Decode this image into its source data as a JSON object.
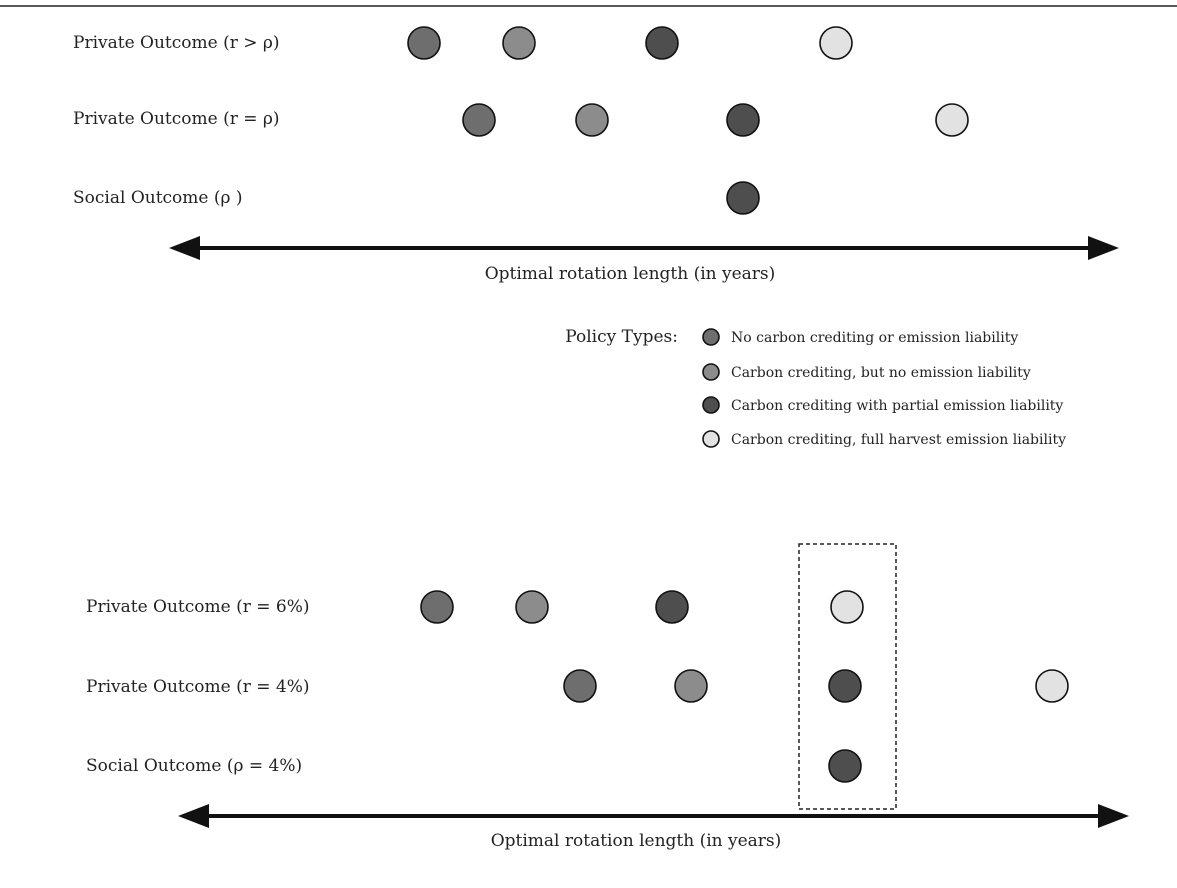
{
  "colors": {
    "none": "#6e6e6e",
    "crediting": "#8c8c8c",
    "partial": "#4e4e4e",
    "full": "#e2e2e2"
  },
  "legend": {
    "title": "Policy Types:",
    "items": [
      {
        "key": "none",
        "label": "No carbon crediting or emission liability"
      },
      {
        "key": "crediting",
        "label": "Carbon crediting, but no emission liability"
      },
      {
        "key": "partial",
        "label": "Carbon crediting with partial emission liability"
      },
      {
        "key": "full",
        "label": "Carbon crediting, full harvest emission liability"
      }
    ]
  },
  "panels": [
    {
      "axis_label": "Optimal rotation length (in years)",
      "rows": [
        {
          "label": "Private Outcome (r > ρ)",
          "dots": [
            "none",
            "crediting",
            "partial",
            "full"
          ]
        },
        {
          "label": "Private Outcome (r = ρ)",
          "dots": [
            "none",
            "crediting",
            "partial",
            "full"
          ]
        },
        {
          "label": "Social Outcome (ρ )",
          "dots": [
            "partial"
          ]
        }
      ]
    },
    {
      "axis_label": "Optimal rotation length (in years)",
      "rows": [
        {
          "label": "Private Outcome (r = 6%)",
          "dots": [
            "none",
            "crediting",
            "partial",
            "full"
          ]
        },
        {
          "label": "Private Outcome (r = 4%)",
          "dots": [
            "none",
            "crediting",
            "partial",
            "full"
          ]
        },
        {
          "label": "Social Outcome (ρ = 4%)",
          "dots": [
            "partial"
          ]
        }
      ]
    }
  ]
}
